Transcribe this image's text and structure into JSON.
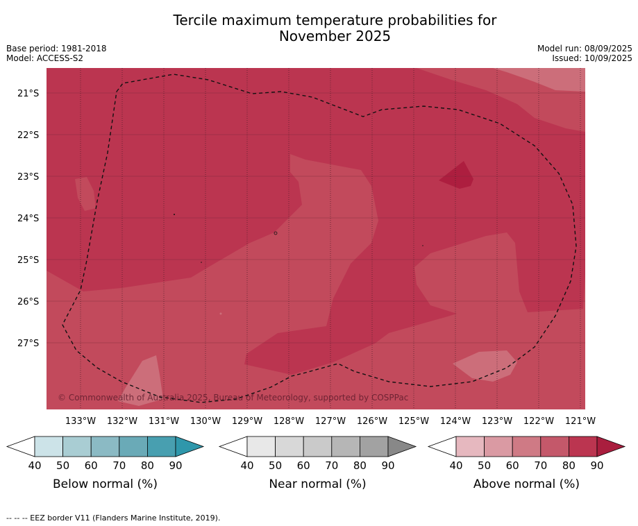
{
  "title_line1": "Tercile maximum temperature probabilities for",
  "title_line2": "November 2025",
  "base_period": "Base period: 1981-2018",
  "model": "Model: ACCESS-S2",
  "model_run": "Model run: 08/09/2025",
  "issued": "Issued: 10/09/2025",
  "copyright": "© Commonwealth of Australia 2025, Bureau of Meteorology, supported by COSPPac",
  "footer": "--  --  -- EEZ border V11 (Flanders Marine Institute, 2019).",
  "lat_labels": [
    "21°S",
    "22°S",
    "23°S",
    "24°S",
    "25°S",
    "26°S",
    "27°S"
  ],
  "lon_labels": [
    "133°W",
    "132°W",
    "131°W",
    "130°W",
    "129°W",
    "128°W",
    "127°W",
    "126°W",
    "125°W",
    "124°W",
    "123°W",
    "122°W",
    "121°W"
  ],
  "colorbars": [
    {
      "name": "below",
      "label": "Below normal (%)",
      "ticks": [
        "40",
        "50",
        "60",
        "70",
        "80",
        "90"
      ],
      "colors": [
        "#ffffff",
        "#cce3e8",
        "#a9cdd3",
        "#8bbac4",
        "#6aaab7",
        "#489fb0",
        "#2f97ab"
      ]
    },
    {
      "name": "near",
      "label": "Near normal (%)",
      "ticks": [
        "40",
        "50",
        "60",
        "70",
        "80",
        "90"
      ],
      "colors": [
        "#ffffff",
        "#e8e8e8",
        "#d8d8d8",
        "#cacaca",
        "#b6b6b6",
        "#a2a2a2",
        "#888888"
      ]
    },
    {
      "name": "above",
      "label": "Above normal (%)",
      "ticks": [
        "40",
        "50",
        "60",
        "70",
        "80",
        "90"
      ],
      "colors": [
        "#ffffff",
        "#e6b8bf",
        "#da9aa3",
        "#cf7a85",
        "#c4586a",
        "#bb3550",
        "#a91e3e"
      ]
    }
  ],
  "map_colors": {
    "p70_80": "#c04b5b",
    "p80_90": "#bb3550",
    "p90": "#ad1e3f",
    "p60_70": "#cf7580"
  }
}
